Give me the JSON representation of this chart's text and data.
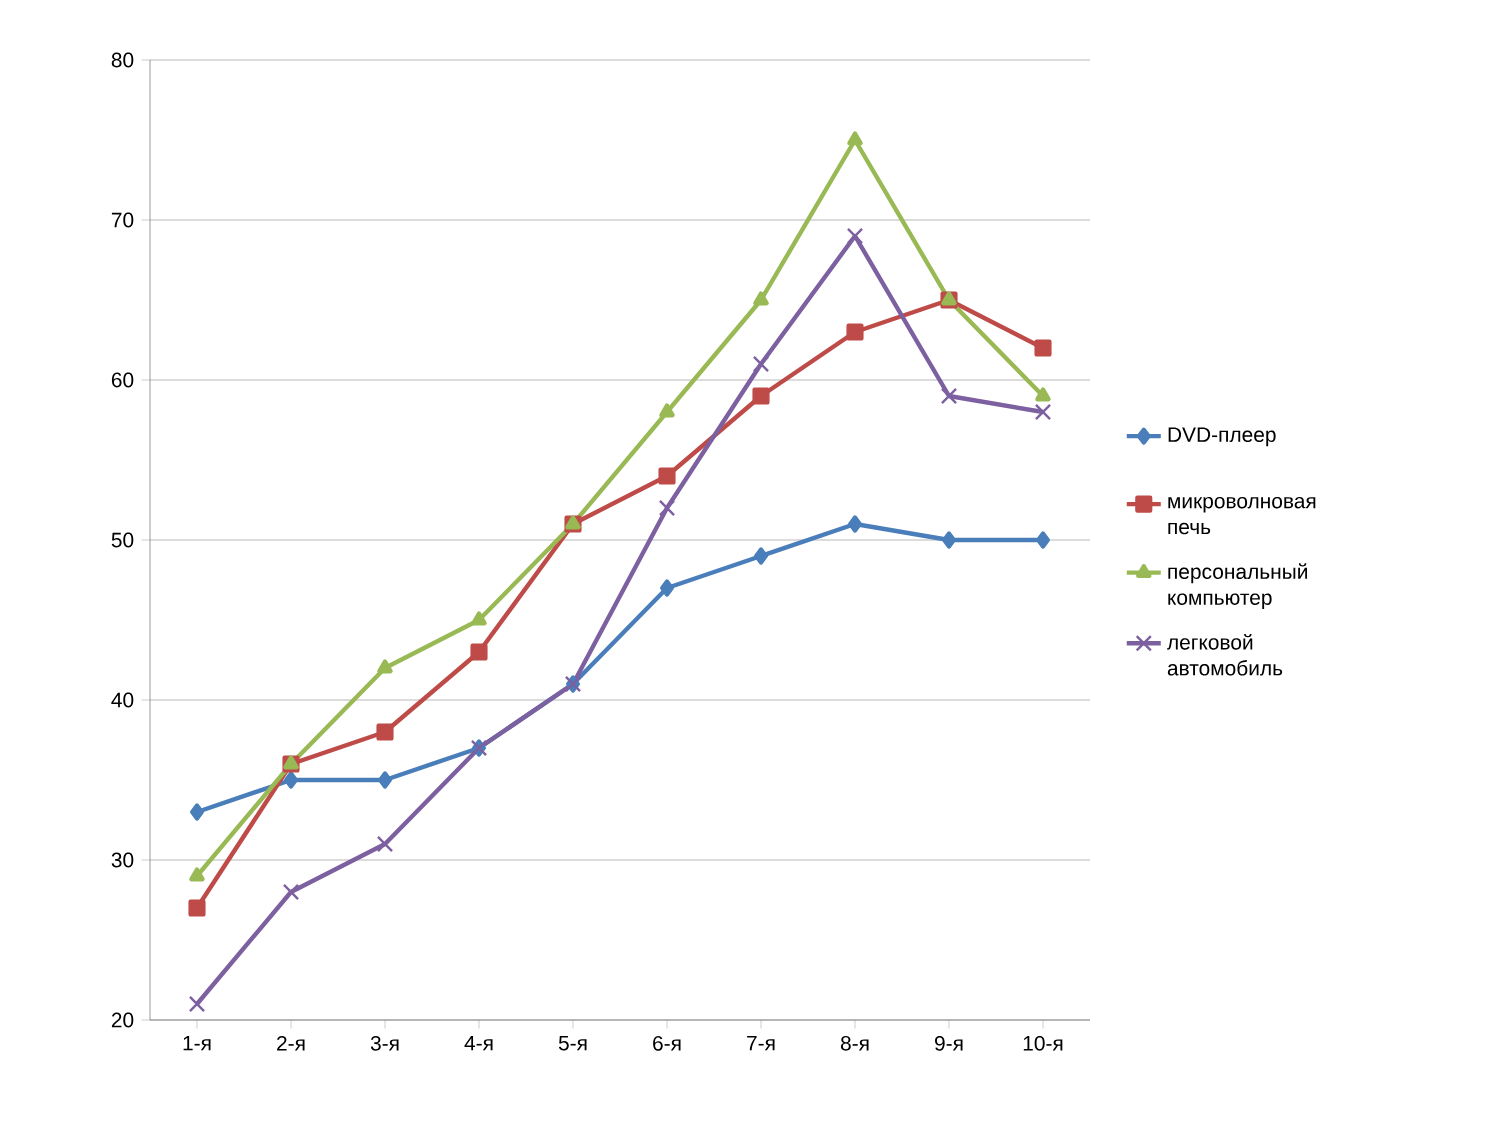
{
  "chart_data": {
    "type": "line",
    "categories": [
      "1-я",
      "2-я",
      "3-я",
      "4-я",
      "5-я",
      "6-я",
      "7-я",
      "8-я",
      "9-я",
      "10-я"
    ],
    "series": [
      {
        "name": "DVD-плеер",
        "color": "#4a7ebb",
        "marker": "diamond",
        "values": [
          33,
          35,
          35,
          37,
          41,
          47,
          49,
          51,
          50,
          50
        ]
      },
      {
        "name": "микроволновая печь",
        "color": "#be4b48",
        "marker": "square",
        "values": [
          27,
          36,
          38,
          43,
          51,
          54,
          59,
          63,
          65,
          62
        ]
      },
      {
        "name": "персональный компьютер",
        "color": "#98b954",
        "marker": "triangle",
        "values": [
          29,
          36,
          42,
          45,
          51,
          58,
          65,
          75,
          65,
          59
        ]
      },
      {
        "name": "легковой автомобиль",
        "color": "#7d60a0",
        "marker": "cross",
        "values": [
          21,
          28,
          31,
          37,
          41,
          52,
          61,
          69,
          59,
          58
        ]
      }
    ],
    "ylim": [
      20,
      80
    ],
    "yticks": [
      20,
      30,
      40,
      50,
      60,
      70,
      80
    ],
    "grid": "y",
    "legend": "right",
    "line_style": "solid"
  }
}
